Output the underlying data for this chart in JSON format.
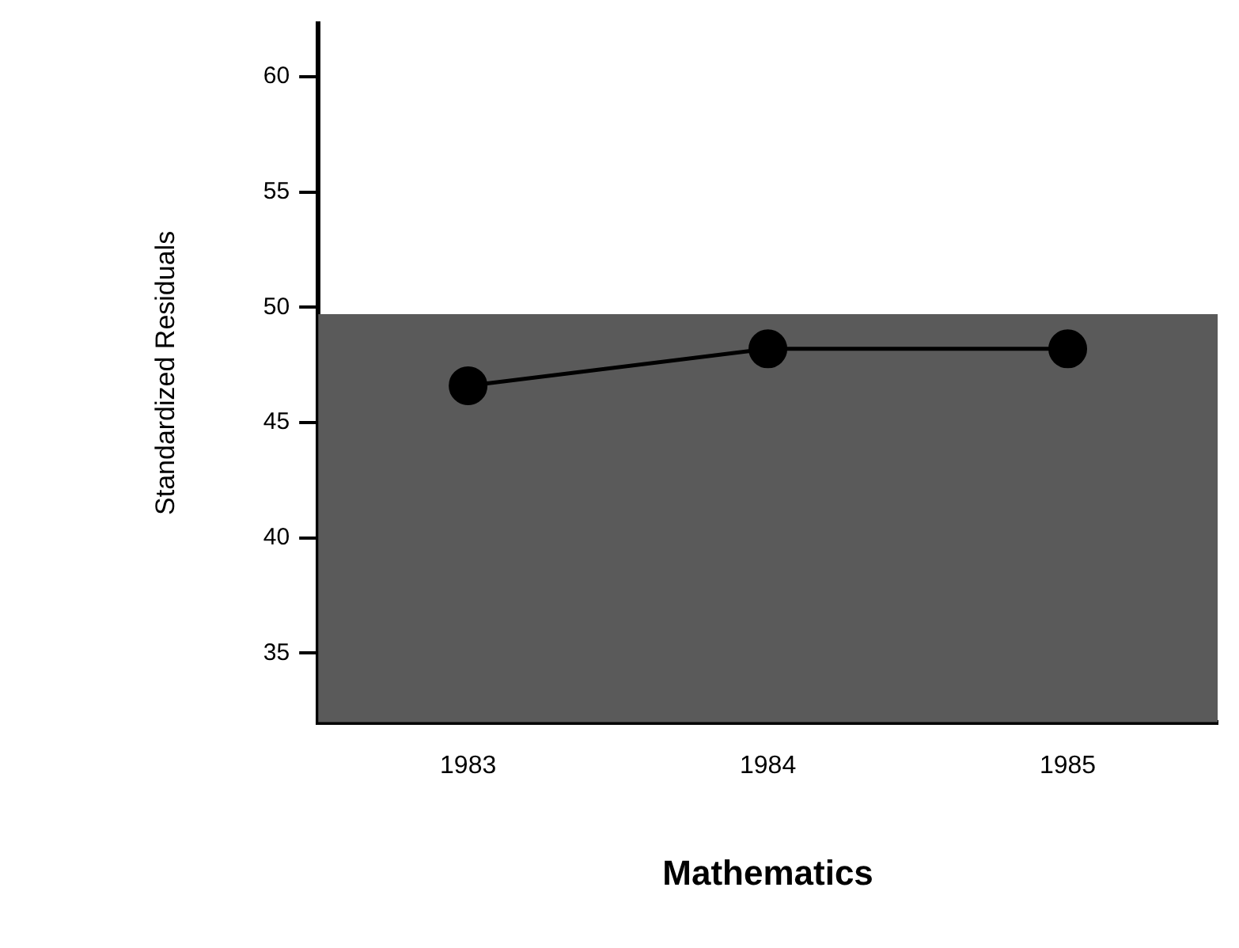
{
  "chart_data": {
    "type": "line",
    "xlabel": "Mathematics",
    "ylabel": "Standardized Residuals",
    "categories": [
      "1983",
      "1984",
      "1985"
    ],
    "series": [
      {
        "color": "#000000",
        "values": [
          46.6,
          48.2,
          48.2
        ]
      }
    ],
    "ylim": [
      32,
      62.3
    ],
    "yticks": [
      35,
      40,
      45,
      50,
      55,
      60
    ],
    "bands": [
      {
        "axis": "y",
        "from": 32,
        "to": 49.7,
        "color": "#5a5a5a"
      }
    ],
    "grid": false,
    "legend": false,
    "marker": "circle",
    "line_style": "solid"
  }
}
